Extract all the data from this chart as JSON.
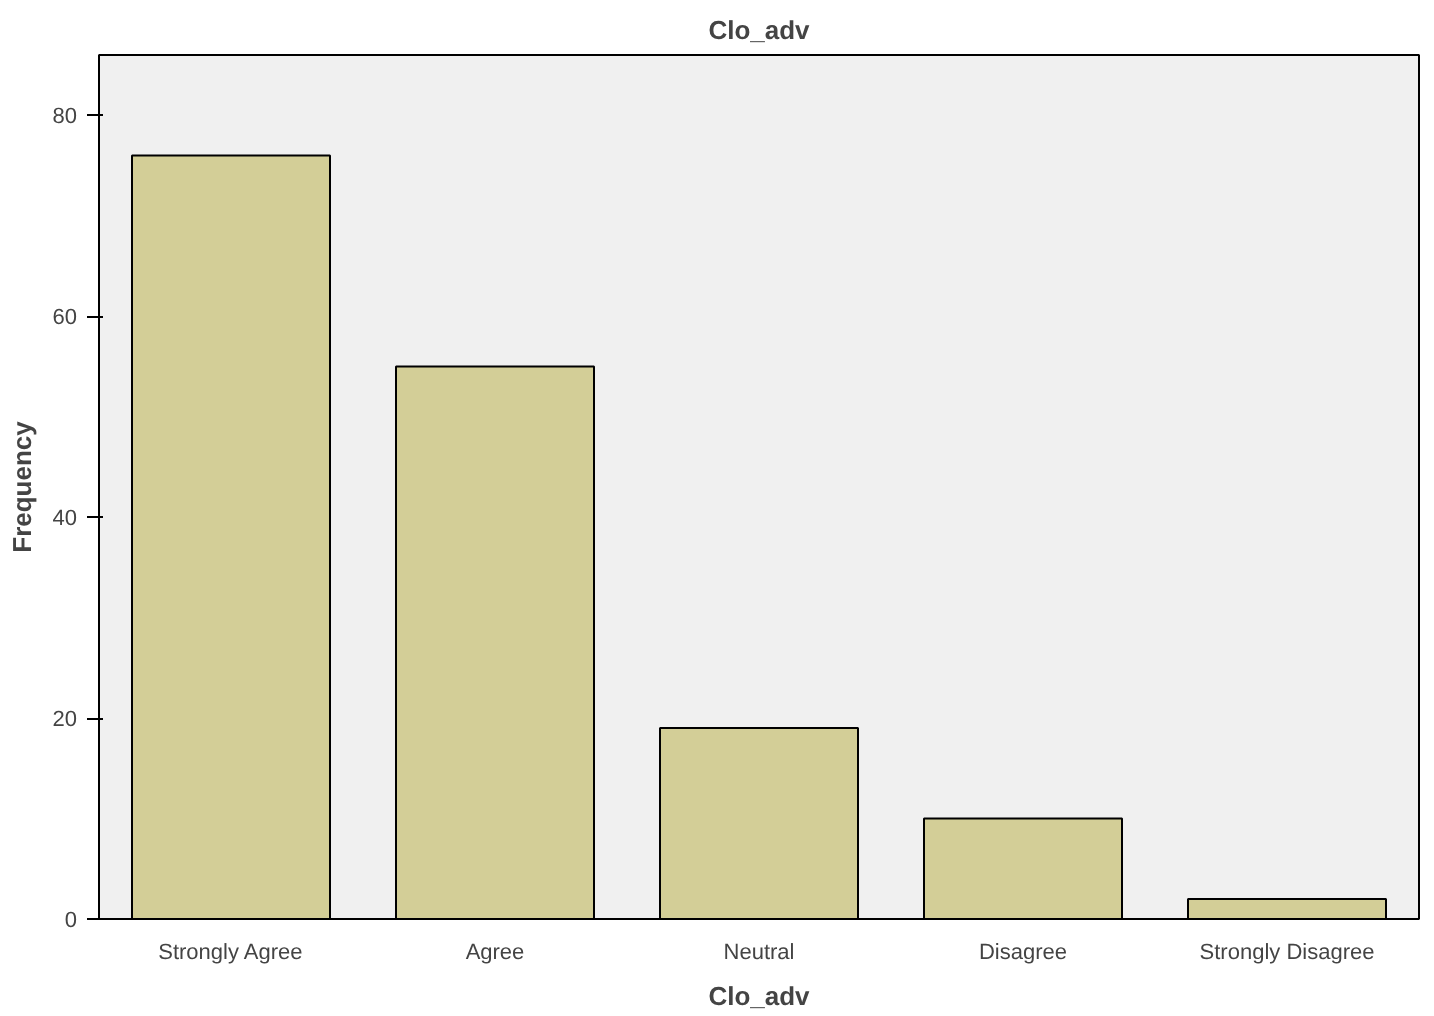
{
  "chart_data": {
    "type": "bar",
    "title": "Clo_adv",
    "xlabel": "Clo_adv",
    "ylabel": "Frequency",
    "categories": [
      "Strongly Agree",
      "Agree",
      "Neutral",
      "Disagree",
      "Strongly Disagree"
    ],
    "values": [
      76,
      55,
      19,
      10,
      2
    ],
    "color": "#d3ce97",
    "ylim": [
      0,
      86
    ],
    "yticks": [
      0,
      20,
      40,
      60,
      80
    ],
    "grid": false
  }
}
